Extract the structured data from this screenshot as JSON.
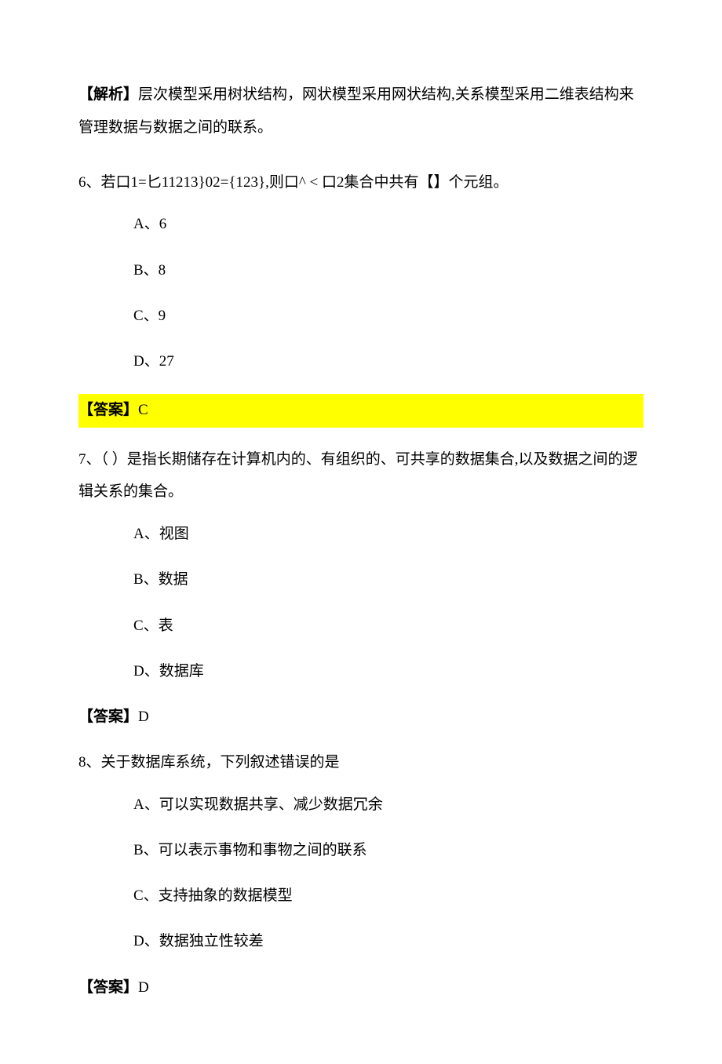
{
  "analysis": {
    "label": "【解析】",
    "text": "层次模型采用树状结构，网状模型采用网状结构,关系模型采用二维表结构来管理数据与数据之间的联系。"
  },
  "q6": {
    "text": "6、若口1=匕11213}02={123},则口^ < 口2集合中共有【】个元组。",
    "options": {
      "a": "A、6",
      "b": "B、8",
      "c": "C、9",
      "d": "D、27"
    },
    "answer_label": "【答案】",
    "answer_value": "C"
  },
  "q7": {
    "text": "7、（  ）是指长期储存在计算机内的、有组织的、可共享的数据集合,以及数据之间的逻辑关系的集合。",
    "options": {
      "a": "A、视图",
      "b": "B、数据",
      "c": "C、表",
      "d": "D、数据库"
    },
    "answer_label": "【答案】",
    "answer_value": "D"
  },
  "q8": {
    "text": "8、关于数据库系统，下列叙述错误的是",
    "options": {
      "a": "A、可以实现数据共享、减少数据冗余",
      "b": "B、可以表示事物和事物之间的联系",
      "c": "C、支持抽象的数据模型",
      "d": "D、数据独立性较差"
    },
    "answer_label": "【答案】",
    "answer_value": "D"
  }
}
